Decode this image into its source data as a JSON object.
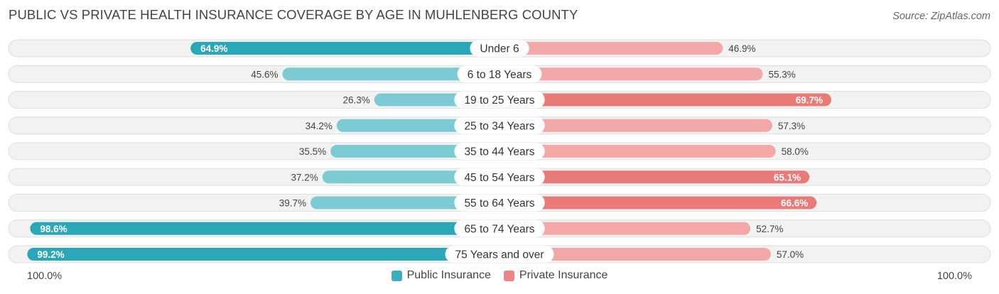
{
  "title": "PUBLIC VS PRIVATE HEALTH INSURANCE COVERAGE BY AGE IN MUHLENBERG COUNTY",
  "source": "Source: ZipAtlas.com",
  "axis_left_label": "100.0%",
  "axis_right_label": "100.0%",
  "colors": {
    "public": "#2ba8b8",
    "public_light": "#7ccad3",
    "private": "#e97a78",
    "private_light": "#f1a8a6",
    "row_bg": "#f2f2f2",
    "row_border": "#dedede"
  },
  "legend": [
    {
      "label": "Public Insurance",
      "color": "#3aaebd"
    },
    {
      "label": "Private Insurance",
      "color": "#ec8583"
    }
  ],
  "chart_data": {
    "type": "bar",
    "orientation": "horizontal-diverging",
    "title": "PUBLIC VS PRIVATE HEALTH INSURANCE COVERAGE BY AGE IN MUHLENBERG COUNTY",
    "xlim": [
      0,
      100
    ],
    "categories": [
      "Under 6",
      "6 to 18 Years",
      "19 to 25 Years",
      "25 to 34 Years",
      "35 to 44 Years",
      "45 to 54 Years",
      "55 to 64 Years",
      "65 to 74 Years",
      "75 Years and over"
    ],
    "series": [
      {
        "name": "Public Insurance",
        "values": [
          64.9,
          45.6,
          26.3,
          34.2,
          35.5,
          37.2,
          39.7,
          98.6,
          99.2
        ],
        "labels": [
          "64.9%",
          "45.6%",
          "26.3%",
          "34.2%",
          "35.5%",
          "37.2%",
          "39.7%",
          "98.6%",
          "99.2%"
        ]
      },
      {
        "name": "Private Insurance",
        "values": [
          46.9,
          55.3,
          69.7,
          57.3,
          58.0,
          65.1,
          66.6,
          52.7,
          57.0
        ],
        "labels": [
          "46.9%",
          "55.3%",
          "69.7%",
          "57.3%",
          "58.0%",
          "65.1%",
          "66.6%",
          "52.7%",
          "57.0%"
        ]
      }
    ]
  }
}
